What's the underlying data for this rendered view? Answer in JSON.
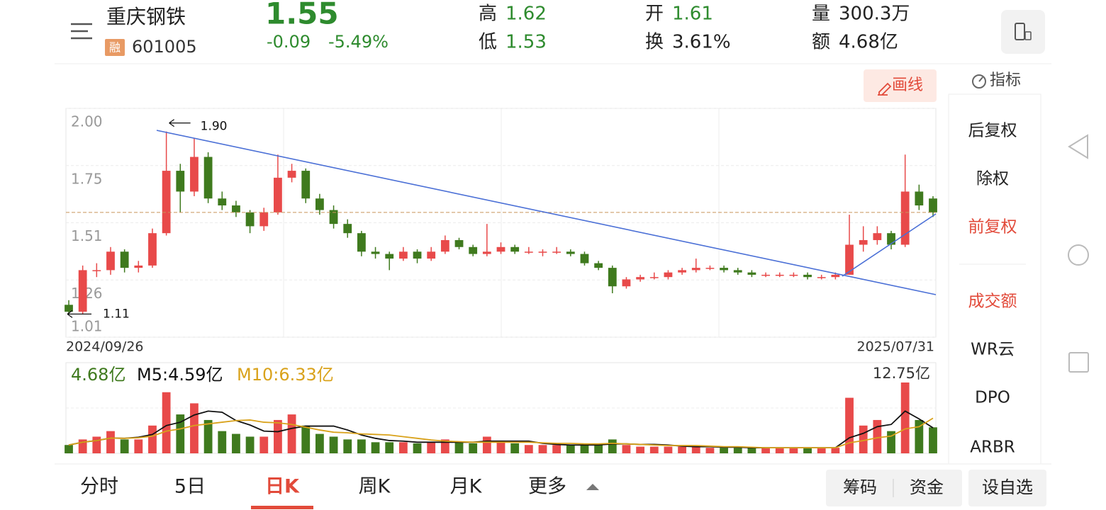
{
  "header": {
    "name": "重庆钢铁",
    "badge": "融",
    "code": "601005",
    "price": "1.55",
    "change": "-0.09",
    "change_pct": "-5.49%",
    "stats": [
      {
        "label": "高",
        "value": "1.62"
      },
      {
        "label": "低",
        "value": "1.53"
      },
      {
        "label": "开",
        "value": "1.61"
      },
      {
        "label": "换",
        "value": "3.61%"
      },
      {
        "label": "量",
        "value": "300.3万"
      },
      {
        "label": "额",
        "value": "4.68亿"
      }
    ]
  },
  "toolbar": {
    "draw": "画线",
    "indicator": "指标"
  },
  "sidebar": {
    "items": [
      "后复权",
      "除权",
      "前复权",
      "成交额",
      "WR云",
      "DPO",
      "ARBR"
    ]
  },
  "tabs": [
    "分时",
    "5日",
    "日K",
    "周K",
    "月K",
    "更多"
  ],
  "buttons": [
    "筹码",
    "资金",
    "设自选"
  ],
  "chart_data": [
    {
      "type": "candlestick",
      "up_color": "#e84a4a",
      "down_color": "#3f7a1e",
      "x_start_label": "2024/09/26",
      "x_end_label": "2025/07/31",
      "max_annotation": "1.90",
      "min_annotation": "1.11",
      "ylim": [
        1.01,
        2.0
      ],
      "yticks": [
        {
          "value": 2.0,
          "label": "2.00"
        },
        {
          "value": 1.7525,
          "label": "1.75"
        },
        {
          "value": 1.505,
          "label": "1.51"
        },
        {
          "value": 1.2575,
          "label": "1.26"
        },
        {
          "value": 1.01,
          "label": "1.01"
        }
      ],
      "candles": [
        [
          1.15,
          1.17,
          1.11,
          1.12
        ],
        [
          1.12,
          1.32,
          1.11,
          1.3
        ],
        [
          1.3,
          1.33,
          1.27,
          1.3
        ],
        [
          1.3,
          1.4,
          1.28,
          1.38
        ],
        [
          1.38,
          1.39,
          1.29,
          1.31
        ],
        [
          1.31,
          1.34,
          1.29,
          1.32
        ],
        [
          1.32,
          1.48,
          1.31,
          1.46
        ],
        [
          1.46,
          1.9,
          1.45,
          1.73
        ],
        [
          1.73,
          1.76,
          1.55,
          1.64
        ],
        [
          1.64,
          1.87,
          1.62,
          1.79
        ],
        [
          1.79,
          1.81,
          1.59,
          1.61
        ],
        [
          1.61,
          1.64,
          1.56,
          1.58
        ],
        [
          1.58,
          1.6,
          1.53,
          1.55
        ],
        [
          1.55,
          1.56,
          1.46,
          1.49
        ],
        [
          1.49,
          1.57,
          1.47,
          1.55
        ],
        [
          1.55,
          1.8,
          1.54,
          1.7
        ],
        [
          1.7,
          1.76,
          1.68,
          1.73
        ],
        [
          1.73,
          1.74,
          1.59,
          1.61
        ],
        [
          1.61,
          1.63,
          1.54,
          1.56
        ],
        [
          1.56,
          1.58,
          1.48,
          1.5
        ],
        [
          1.5,
          1.52,
          1.44,
          1.46
        ],
        [
          1.46,
          1.47,
          1.36,
          1.38
        ],
        [
          1.38,
          1.4,
          1.35,
          1.37
        ],
        [
          1.37,
          1.38,
          1.3,
          1.35
        ],
        [
          1.35,
          1.4,
          1.34,
          1.38
        ],
        [
          1.38,
          1.39,
          1.33,
          1.35
        ],
        [
          1.35,
          1.4,
          1.34,
          1.38
        ],
        [
          1.38,
          1.45,
          1.37,
          1.43
        ],
        [
          1.43,
          1.44,
          1.39,
          1.4
        ],
        [
          1.4,
          1.41,
          1.36,
          1.37
        ],
        [
          1.37,
          1.5,
          1.36,
          1.38
        ],
        [
          1.38,
          1.42,
          1.37,
          1.4
        ],
        [
          1.4,
          1.41,
          1.37,
          1.38
        ],
        [
          1.38,
          1.4,
          1.37,
          1.38
        ],
        [
          1.38,
          1.39,
          1.36,
          1.38
        ],
        [
          1.38,
          1.4,
          1.37,
          1.38
        ],
        [
          1.38,
          1.39,
          1.36,
          1.37
        ],
        [
          1.37,
          1.38,
          1.32,
          1.33
        ],
        [
          1.33,
          1.34,
          1.3,
          1.31
        ],
        [
          1.31,
          1.32,
          1.2,
          1.23
        ],
        [
          1.23,
          1.27,
          1.22,
          1.26
        ],
        [
          1.26,
          1.28,
          1.25,
          1.27
        ],
        [
          1.27,
          1.29,
          1.26,
          1.27
        ],
        [
          1.27,
          1.3,
          1.26,
          1.29
        ],
        [
          1.29,
          1.31,
          1.28,
          1.3
        ],
        [
          1.3,
          1.35,
          1.29,
          1.31
        ],
        [
          1.31,
          1.32,
          1.3,
          1.31
        ],
        [
          1.31,
          1.32,
          1.29,
          1.3
        ],
        [
          1.3,
          1.31,
          1.28,
          1.29
        ],
        [
          1.29,
          1.3,
          1.27,
          1.28
        ],
        [
          1.28,
          1.29,
          1.27,
          1.28
        ],
        [
          1.28,
          1.29,
          1.27,
          1.28
        ],
        [
          1.28,
          1.29,
          1.27,
          1.28
        ],
        [
          1.28,
          1.29,
          1.26,
          1.27
        ],
        [
          1.27,
          1.28,
          1.26,
          1.27
        ],
        [
          1.27,
          1.29,
          1.26,
          1.28
        ],
        [
          1.28,
          1.54,
          1.28,
          1.41
        ],
        [
          1.41,
          1.49,
          1.38,
          1.43
        ],
        [
          1.43,
          1.49,
          1.41,
          1.46
        ],
        [
          1.46,
          1.47,
          1.39,
          1.41
        ],
        [
          1.41,
          1.8,
          1.4,
          1.64
        ],
        [
          1.64,
          1.67,
          1.56,
          1.58
        ],
        [
          1.61,
          1.62,
          1.53,
          1.55
        ]
      ]
    },
    {
      "type": "bar",
      "ylim": [
        0,
        12.75
      ],
      "yticks": [
        {
          "value": 12.75,
          "label": "12.75亿"
        }
      ],
      "series": [
        {
          "name": "4.68亿",
          "color": "#3f7a1e",
          "values": [
            1.5,
            2.5,
            3,
            4,
            2.5,
            2.5,
            5,
            11,
            7,
            9,
            6,
            4,
            3.5,
            3,
            3,
            6,
            7,
            5,
            3.5,
            3,
            2.5,
            2.5,
            2,
            2,
            2,
            1.8,
            2,
            2.5,
            2,
            1.8,
            3,
            2,
            1.8,
            1.5,
            1.5,
            1.5,
            1.5,
            1.5,
            1.5,
            2.5,
            1.5,
            1.2,
            1.2,
            1.2,
            1.2,
            1.2,
            1,
            1,
            1,
            1,
            1,
            1,
            1,
            1,
            1,
            1,
            10,
            5,
            6,
            4,
            12.75,
            6,
            4.68
          ]
        },
        {
          "name": "M5:4.59亿",
          "color": "#111111",
          "values": [
            1.5,
            2,
            2.3,
            2.75,
            2.7,
            2.9,
            3.4,
            5,
            5.6,
            6.9,
            7.6,
            7.4,
            5.9,
            5.1,
            4,
            3.9,
            4.5,
            4.9,
            4.9,
            4.9,
            4.2,
            3.3,
            2.7,
            2.3,
            2.2,
            2,
            2,
            2,
            2,
            2,
            2.2,
            2.2,
            2.2,
            2.2,
            1.8,
            1.6,
            1.5,
            1.5,
            1.5,
            1.7,
            1.7,
            1.6,
            1.6,
            1.5,
            1.3,
            1.2,
            1.2,
            1.1,
            1.1,
            1,
            1,
            1,
            1,
            1,
            1,
            1,
            2.8,
            3.6,
            4.8,
            5.2,
            7.6,
            6.2,
            4.59
          ]
        },
        {
          "name": "M10:6.33亿",
          "color": "#d9a21b",
          "values": [
            1.5,
            2,
            2.3,
            2.75,
            2.7,
            2.8,
            3.1,
            4,
            4.4,
            5,
            5.3,
            5.6,
            5.9,
            6,
            5.6,
            5.5,
            5.2,
            4.7,
            4.2,
            3.8,
            3.7,
            3.5,
            3.4,
            3.3,
            3,
            2.7,
            2.4,
            2.2,
            2.1,
            2,
            2,
            2,
            2,
            2,
            1.9,
            1.8,
            1.8,
            1.7,
            1.7,
            1.8,
            1.7,
            1.6,
            1.5,
            1.4,
            1.4,
            1.4,
            1.3,
            1.2,
            1.2,
            1.1,
            1,
            1,
            1,
            1,
            1,
            1,
            1.9,
            2.3,
            2.8,
            3.1,
            4.4,
            4.8,
            6.33
          ]
        }
      ]
    }
  ]
}
